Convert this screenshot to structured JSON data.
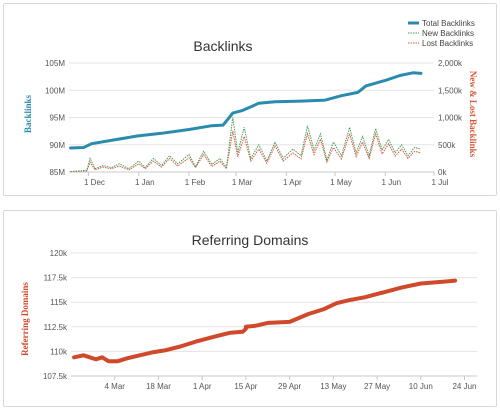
{
  "colors": {
    "total": "#2a8bae",
    "new": "#4a9a5a",
    "lost": "#d9583a",
    "referring": "#d0492b",
    "grid": "#e3e3e3",
    "axis": "#c8c8c8"
  },
  "chart_data": [
    {
      "type": "line",
      "title": "Backlinks",
      "ylabel": "Backlinks",
      "y2label": "New & Lost Backlinks",
      "x_ticks": [
        "1 Dec",
        "1 Jan",
        "1 Feb",
        "1 Mar",
        "1 Apr",
        "1 May",
        "1 Jun",
        "1 Jul"
      ],
      "y_ticks": [
        "85M",
        "90M",
        "95M",
        "100M",
        "105M"
      ],
      "y2_ticks": [
        "0k",
        "500k",
        "1,000k",
        "1,500k",
        "2,000k"
      ],
      "ylim": [
        85000000,
        105000000
      ],
      "y2lim": [
        0,
        2000000
      ],
      "x_range": [
        "2023-11-19",
        "2023-07-01"
      ],
      "legend_position": "top-right",
      "series": [
        {
          "name": "Total Backlinks",
          "axis": "left",
          "style": "solid",
          "points": [
            [
              "2023-11-20",
              89.4
            ],
            [
              "2023-11-28",
              89.5
            ],
            [
              "2023-12-03",
              90.2
            ],
            [
              "2023-12-15",
              90.8
            ],
            [
              "2023-12-31",
              91.6
            ],
            [
              "2024-01-15",
              92.1
            ],
            [
              "2024-02-01",
              92.8
            ],
            [
              "2024-02-15",
              93.5
            ],
            [
              "2024-02-22",
              93.6
            ],
            [
              "2024-02-28",
              95.8
            ],
            [
              "2024-03-05",
              96.3
            ],
            [
              "2024-03-15",
              97.6
            ],
            [
              "2024-03-25",
              97.9
            ],
            [
              "2024-04-10",
              98.0
            ],
            [
              "2024-04-25",
              98.2
            ],
            [
              "2024-05-05",
              99.0
            ],
            [
              "2024-05-15",
              99.6
            ],
            [
              "2024-05-20",
              100.8
            ],
            [
              "2024-06-01",
              101.8
            ],
            [
              "2024-06-10",
              102.7
            ],
            [
              "2024-06-18",
              103.2
            ],
            [
              "2024-06-23",
              103.1
            ]
          ]
        },
        {
          "name": "New Backlinks",
          "axis": "right",
          "style": "dotted",
          "points": [
            [
              "2023-11-20",
              10
            ],
            [
              "2023-11-30",
              30
            ],
            [
              "2023-12-02",
              250
            ],
            [
              "2023-12-05",
              60
            ],
            [
              "2023-12-10",
              120
            ],
            [
              "2023-12-15",
              80
            ],
            [
              "2023-12-20",
              150
            ],
            [
              "2023-12-26",
              60
            ],
            [
              "2024-01-01",
              200
            ],
            [
              "2024-01-05",
              80
            ],
            [
              "2024-01-10",
              250
            ],
            [
              "2024-01-15",
              120
            ],
            [
              "2024-01-20",
              300
            ],
            [
              "2024-01-25",
              150
            ],
            [
              "2024-02-01",
              320
            ],
            [
              "2024-02-05",
              100
            ],
            [
              "2024-02-10",
              380
            ],
            [
              "2024-02-15",
              140
            ],
            [
              "2024-02-20",
              250
            ],
            [
              "2024-02-24",
              80
            ],
            [
              "2024-02-28",
              1000
            ],
            [
              "2024-03-02",
              350
            ],
            [
              "2024-03-06",
              820
            ],
            [
              "2024-03-10",
              250
            ],
            [
              "2024-03-15",
              500
            ],
            [
              "2024-03-20",
              200
            ],
            [
              "2024-03-25",
              550
            ],
            [
              "2024-03-30",
              250
            ],
            [
              "2024-04-05",
              420
            ],
            [
              "2024-04-10",
              300
            ],
            [
              "2024-04-14",
              850
            ],
            [
              "2024-04-18",
              400
            ],
            [
              "2024-04-22",
              700
            ],
            [
              "2024-04-26",
              220
            ],
            [
              "2024-04-30",
              550
            ],
            [
              "2024-05-05",
              300
            ],
            [
              "2024-05-10",
              820
            ],
            [
              "2024-05-14",
              350
            ],
            [
              "2024-05-18",
              650
            ],
            [
              "2024-05-22",
              300
            ],
            [
              "2024-05-26",
              800
            ],
            [
              "2024-05-30",
              400
            ],
            [
              "2024-06-03",
              600
            ],
            [
              "2024-06-07",
              350
            ],
            [
              "2024-06-11",
              500
            ],
            [
              "2024-06-15",
              300
            ],
            [
              "2024-06-19",
              450
            ],
            [
              "2024-06-23",
              420
            ]
          ]
        },
        {
          "name": "Lost Backlinks",
          "axis": "right",
          "style": "dotted",
          "points": [
            [
              "2023-11-20",
              5
            ],
            [
              "2023-11-30",
              20
            ],
            [
              "2023-12-02",
              180
            ],
            [
              "2023-12-05",
              40
            ],
            [
              "2023-12-10",
              90
            ],
            [
              "2023-12-15",
              60
            ],
            [
              "2023-12-20",
              110
            ],
            [
              "2023-12-26",
              40
            ],
            [
              "2024-01-01",
              150
            ],
            [
              "2024-01-05",
              60
            ],
            [
              "2024-01-10",
              200
            ],
            [
              "2024-01-15",
              90
            ],
            [
              "2024-01-20",
              250
            ],
            [
              "2024-01-25",
              110
            ],
            [
              "2024-02-01",
              260
            ],
            [
              "2024-02-05",
              80
            ],
            [
              "2024-02-10",
              320
            ],
            [
              "2024-02-15",
              100
            ],
            [
              "2024-02-20",
              200
            ],
            [
              "2024-02-24",
              60
            ],
            [
              "2024-02-28",
              750
            ],
            [
              "2024-03-02",
              280
            ],
            [
              "2024-03-06",
              650
            ],
            [
              "2024-03-10",
              200
            ],
            [
              "2024-03-15",
              420
            ],
            [
              "2024-03-20",
              160
            ],
            [
              "2024-03-25",
              480
            ],
            [
              "2024-03-30",
              200
            ],
            [
              "2024-04-05",
              350
            ],
            [
              "2024-04-10",
              240
            ],
            [
              "2024-04-14",
              700
            ],
            [
              "2024-04-18",
              320
            ],
            [
              "2024-04-22",
              600
            ],
            [
              "2024-04-26",
              180
            ],
            [
              "2024-04-30",
              450
            ],
            [
              "2024-05-05",
              240
            ],
            [
              "2024-05-10",
              700
            ],
            [
              "2024-05-14",
              280
            ],
            [
              "2024-05-18",
              550
            ],
            [
              "2024-05-22",
              250
            ],
            [
              "2024-05-26",
              700
            ],
            [
              "2024-05-30",
              330
            ],
            [
              "2024-06-03",
              520
            ],
            [
              "2024-06-07",
              290
            ],
            [
              "2024-06-11",
              420
            ],
            [
              "2024-06-15",
              250
            ],
            [
              "2024-06-19",
              380
            ],
            [
              "2024-06-23",
              350
            ]
          ]
        }
      ]
    },
    {
      "type": "line",
      "title": "Referring Domains",
      "ylabel": "Referring Domains",
      "x_ticks": [
        "4 Mar",
        "18 Mar",
        "1 Apr",
        "15 Apr",
        "29 Apr",
        "13 May",
        "27 May",
        "10 Jun",
        "24 Jun"
      ],
      "y_ticks": [
        "107.5k",
        "110k",
        "112.5k",
        "115k",
        "117.5k",
        "120k"
      ],
      "ylim": [
        107500,
        120000
      ],
      "x_range": [
        "2024-02-19",
        "2024-06-28"
      ],
      "series": [
        {
          "name": "Referring Domains",
          "style": "solid",
          "points": [
            [
              "2024-02-20",
              109.4
            ],
            [
              "2024-02-23",
              109.6
            ],
            [
              "2024-02-27",
              109.2
            ],
            [
              "2024-02-29",
              109.4
            ],
            [
              "2024-03-02",
              109.0
            ],
            [
              "2024-03-05",
              109.0
            ],
            [
              "2024-03-08",
              109.3
            ],
            [
              "2024-03-12",
              109.6
            ],
            [
              "2024-03-16",
              109.9
            ],
            [
              "2024-03-20",
              110.1
            ],
            [
              "2024-03-25",
              110.5
            ],
            [
              "2024-03-30",
              111.0
            ],
            [
              "2024-04-05",
              111.5
            ],
            [
              "2024-04-10",
              111.9
            ],
            [
              "2024-04-14",
              112.0
            ],
            [
              "2024-04-15",
              112.3
            ],
            [
              "2024-04-15",
              112.5
            ],
            [
              "2024-04-18",
              112.6
            ],
            [
              "2024-04-22",
              112.9
            ],
            [
              "2024-04-29",
              113.0
            ],
            [
              "2024-05-05",
              113.8
            ],
            [
              "2024-05-10",
              114.3
            ],
            [
              "2024-05-14",
              114.9
            ],
            [
              "2024-05-18",
              115.2
            ],
            [
              "2024-05-23",
              115.5
            ],
            [
              "2024-05-29",
              116.0
            ],
            [
              "2024-06-04",
              116.5
            ],
            [
              "2024-06-10",
              116.9
            ],
            [
              "2024-06-14",
              117.0
            ],
            [
              "2024-06-18",
              117.1
            ],
            [
              "2024-06-21",
              117.2
            ]
          ]
        }
      ]
    }
  ]
}
